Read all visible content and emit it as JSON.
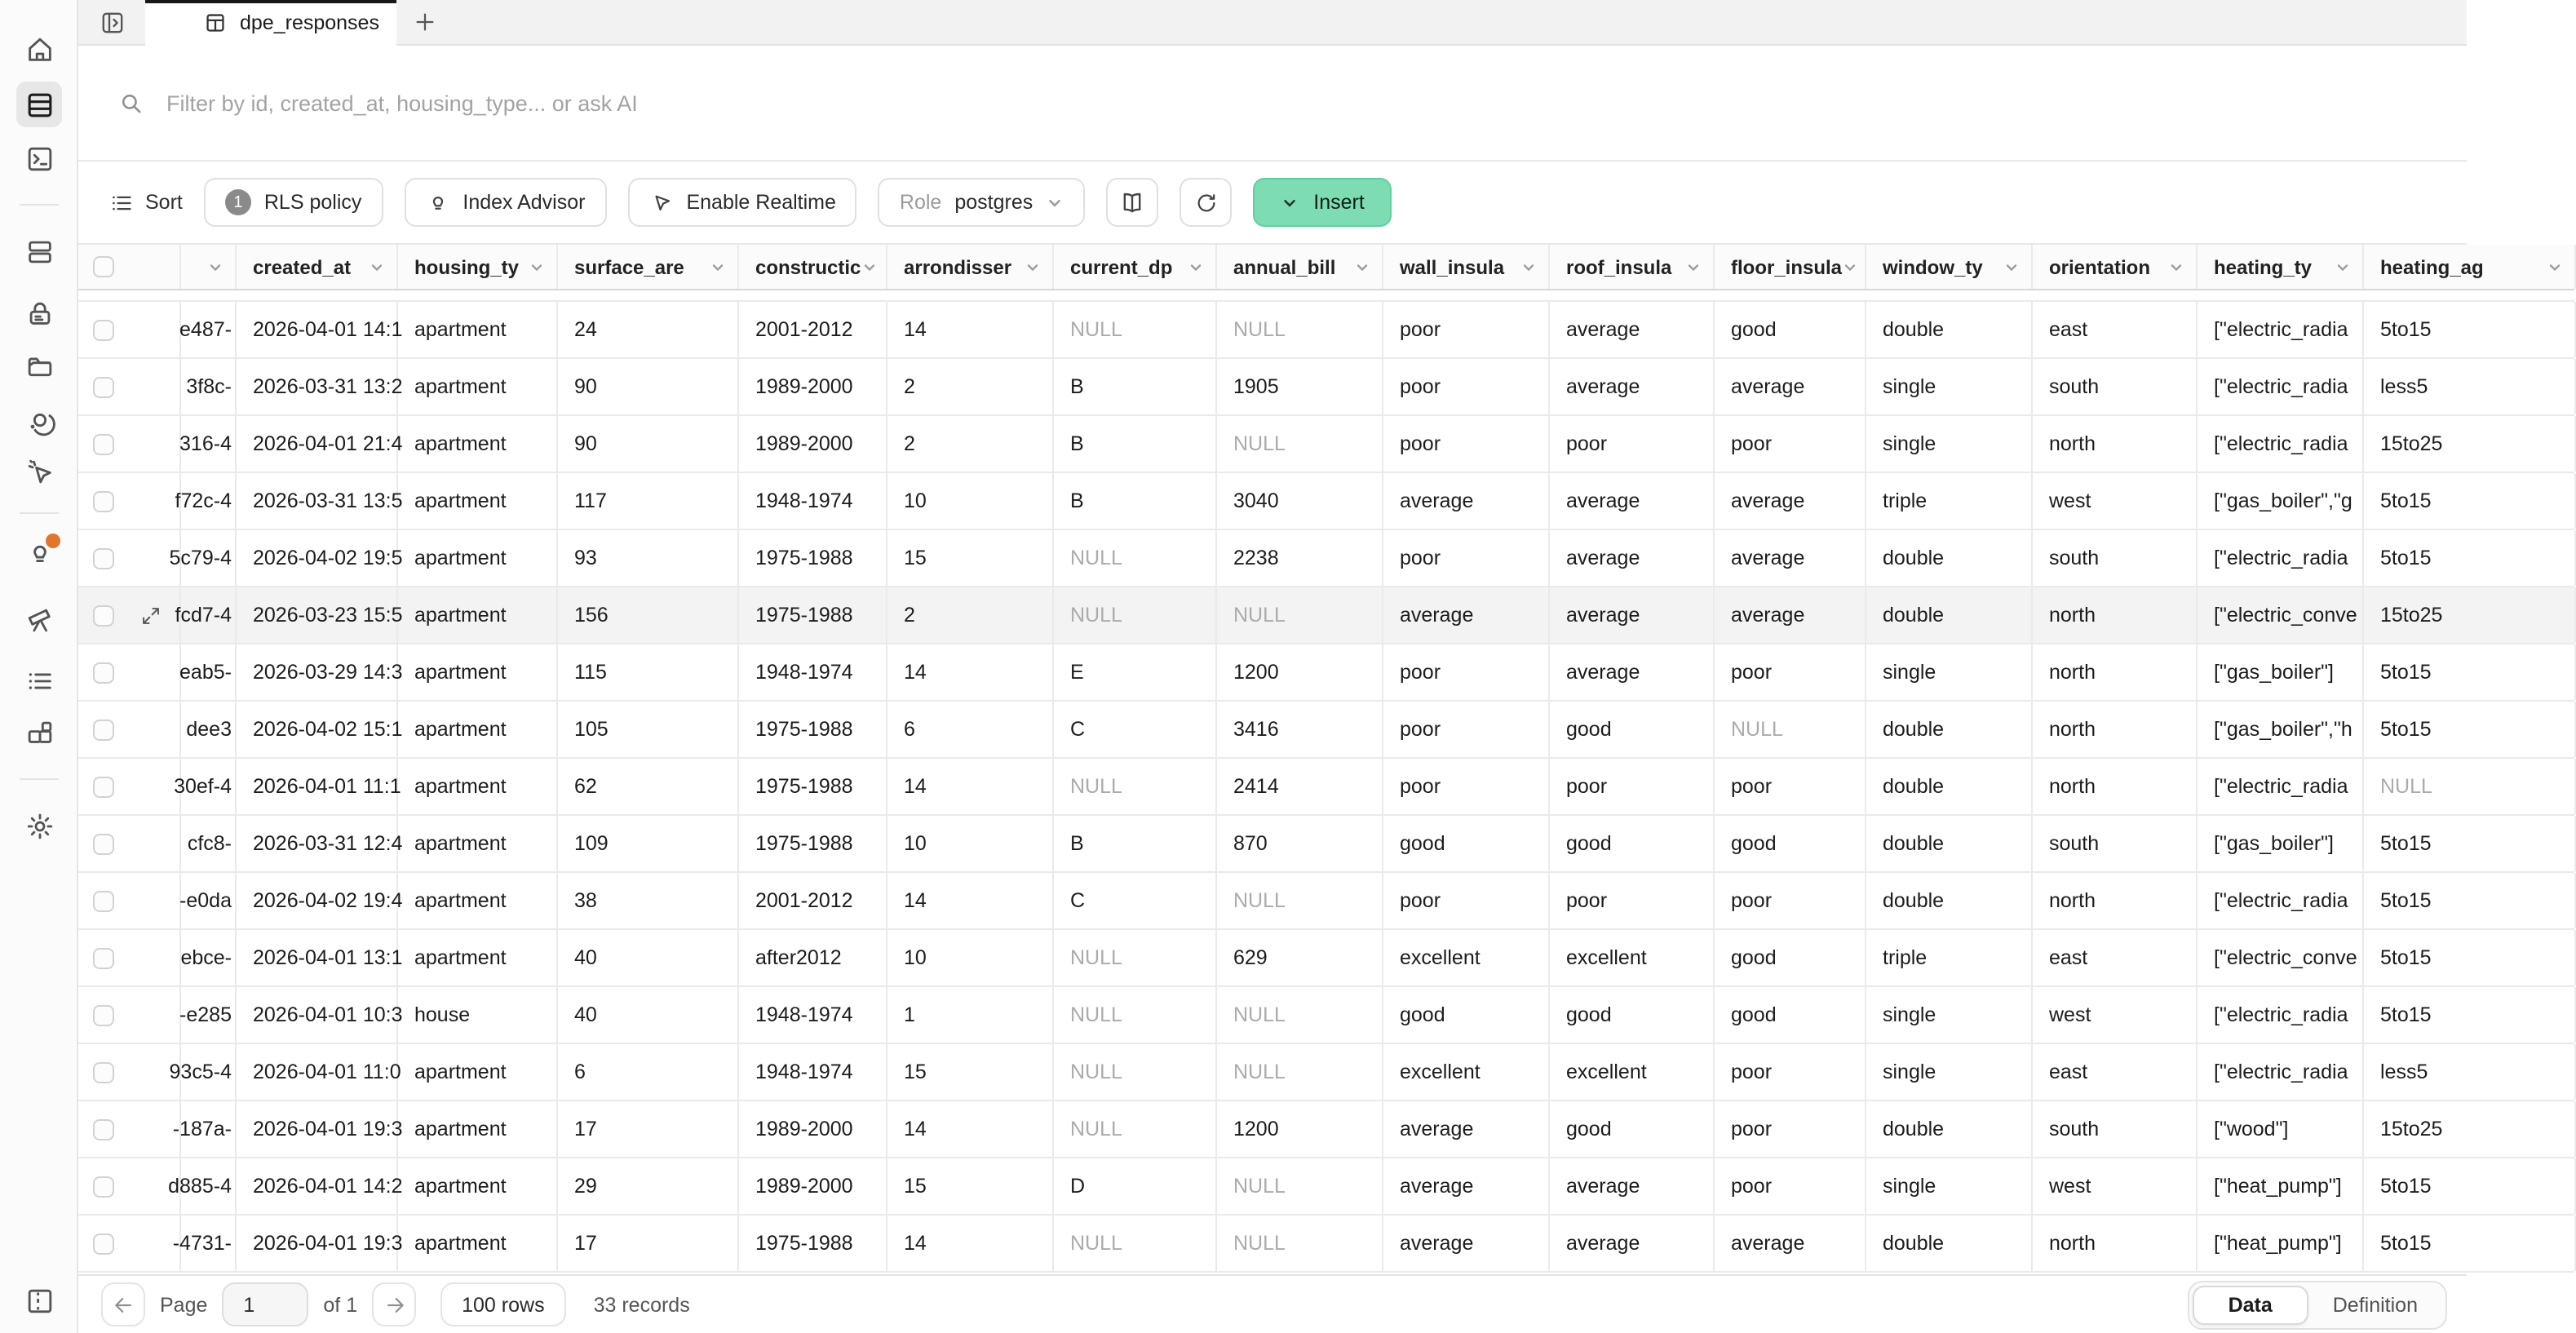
{
  "tab_bar": {
    "active_tab": "dpe_responses"
  },
  "filter_bar": {
    "placeholder": "Filter by id, created_at, housing_type... or ask AI"
  },
  "toolbar": {
    "sort": "Sort",
    "rls_policy": "RLS policy",
    "rls_count": "1",
    "index_advisor": "Index Advisor",
    "enable_realtime": "Enable Realtime",
    "role_label": "Role",
    "role_value": "postgres",
    "insert": "Insert"
  },
  "sidebar": {
    "active": "table-editor",
    "items": [
      "home",
      "table-editor",
      "sql-editor",
      "database",
      "authentication",
      "storage",
      "edge-functions",
      "realtime",
      "advisors",
      "reports",
      "logs",
      "api-docs",
      "settings",
      "toggle-panel"
    ]
  },
  "colors": {
    "accent_green": "#7edcb2",
    "notification_orange": "#e0762e"
  },
  "table": {
    "hovered_row_index": 5,
    "null_text": "NULL",
    "columns": [
      {
        "key": "id",
        "label": "",
        "width": 34,
        "align": "right"
      },
      {
        "key": "created_at",
        "label": "created_at",
        "width": 99
      },
      {
        "key": "housing_ty",
        "label": "housing_ty",
        "width": 98
      },
      {
        "key": "surface_are",
        "label": "surface_are",
        "width": 111
      },
      {
        "key": "constructic",
        "label": "constructic",
        "width": 91
      },
      {
        "key": "arrondisser",
        "label": "arrondisser",
        "width": 102
      },
      {
        "key": "current_dp",
        "label": "current_dp",
        "width": 100
      },
      {
        "key": "annual_bill",
        "label": "annual_bill",
        "width": 102
      },
      {
        "key": "wall_insula",
        "label": "wall_insula",
        "width": 102
      },
      {
        "key": "roof_insula",
        "label": "roof_insula",
        "width": 101
      },
      {
        "key": "floor_insula",
        "label": "floor_insula",
        "width": 93
      },
      {
        "key": "window_ty",
        "label": "window_ty",
        "width": 102
      },
      {
        "key": "orientation",
        "label": "orientation",
        "width": 101
      },
      {
        "key": "heating_ty",
        "label": "heating_ty",
        "width": 102
      },
      {
        "key": "heating_ag",
        "label": "heating_ag",
        "width": 130
      }
    ],
    "rows": [
      [
        "e487-",
        "2026-04-01 14:1",
        "apartment",
        "24",
        "2001-2012",
        "14",
        "NULL",
        "NULL",
        "poor",
        "average",
        "good",
        "double",
        "east",
        "[\"electric_radia",
        "5to15"
      ],
      [
        "3f8c-",
        "2026-03-31 13:2",
        "apartment",
        "90",
        "1989-2000",
        "2",
        "B",
        "1905",
        "poor",
        "average",
        "average",
        "single",
        "south",
        "[\"electric_radia",
        "less5"
      ],
      [
        "316-4",
        "2026-04-01 21:4",
        "apartment",
        "90",
        "1989-2000",
        "2",
        "B",
        "NULL",
        "poor",
        "poor",
        "poor",
        "single",
        "north",
        "[\"electric_radia",
        "15to25"
      ],
      [
        "f72c-4",
        "2026-03-31 13:5",
        "apartment",
        "117",
        "1948-1974",
        "10",
        "B",
        "3040",
        "average",
        "average",
        "average",
        "triple",
        "west",
        "[\"gas_boiler\",\"g",
        "5to15"
      ],
      [
        "5c79-4",
        "2026-04-02 19:5",
        "apartment",
        "93",
        "1975-1988",
        "15",
        "NULL",
        "2238",
        "poor",
        "average",
        "average",
        "double",
        "south",
        "[\"electric_radia",
        "5to15"
      ],
      [
        "fcd7-4",
        "2026-03-23 15:5",
        "apartment",
        "156",
        "1975-1988",
        "2",
        "NULL",
        "NULL",
        "average",
        "average",
        "average",
        "double",
        "north",
        "[\"electric_conve",
        "15to25"
      ],
      [
        "eab5-",
        "2026-03-29 14:3",
        "apartment",
        "115",
        "1948-1974",
        "14",
        "E",
        "1200",
        "poor",
        "average",
        "poor",
        "single",
        "north",
        "[\"gas_boiler\"]",
        "5to15"
      ],
      [
        "dee3",
        "2026-04-02 15:1",
        "apartment",
        "105",
        "1975-1988",
        "6",
        "C",
        "3416",
        "poor",
        "good",
        "NULL",
        "double",
        "north",
        "[\"gas_boiler\",\"h",
        "5to15"
      ],
      [
        "30ef-4",
        "2026-04-01 11:1",
        "apartment",
        "62",
        "1975-1988",
        "14",
        "NULL",
        "2414",
        "poor",
        "poor",
        "poor",
        "double",
        "north",
        "[\"electric_radia",
        "NULL"
      ],
      [
        "cfc8-",
        "2026-03-31 12:4",
        "apartment",
        "109",
        "1975-1988",
        "10",
        "B",
        "870",
        "good",
        "good",
        "good",
        "double",
        "south",
        "[\"gas_boiler\"]",
        "5to15"
      ],
      [
        "-e0da",
        "2026-04-02 19:4",
        "apartment",
        "38",
        "2001-2012",
        "14",
        "C",
        "NULL",
        "poor",
        "poor",
        "poor",
        "double",
        "north",
        "[\"electric_radia",
        "5to15"
      ],
      [
        "ebce-",
        "2026-04-01 13:1",
        "apartment",
        "40",
        "after2012",
        "10",
        "NULL",
        "629",
        "excellent",
        "excellent",
        "good",
        "triple",
        "east",
        "[\"electric_conve",
        "5to15"
      ],
      [
        "-e285",
        "2026-04-01 10:3",
        "house",
        "40",
        "1948-1974",
        "1",
        "NULL",
        "NULL",
        "good",
        "good",
        "good",
        "single",
        "west",
        "[\"electric_radia",
        "5to15"
      ],
      [
        "93c5-4",
        "2026-04-01 11:0",
        "apartment",
        "6",
        "1948-1974",
        "15",
        "NULL",
        "NULL",
        "excellent",
        "excellent",
        "poor",
        "single",
        "east",
        "[\"electric_radia",
        "less5"
      ],
      [
        "-187a-",
        "2026-04-01 19:3",
        "apartment",
        "17",
        "1989-2000",
        "14",
        "NULL",
        "1200",
        "average",
        "good",
        "poor",
        "double",
        "south",
        "[\"wood\"]",
        "15to25"
      ],
      [
        "d885-4",
        "2026-04-01 14:2",
        "apartment",
        "29",
        "1989-2000",
        "15",
        "D",
        "NULL",
        "average",
        "average",
        "poor",
        "single",
        "west",
        "[\"heat_pump\"]",
        "5to15"
      ],
      [
        "-4731-",
        "2026-04-01 19:3",
        "apartment",
        "17",
        "1975-1988",
        "14",
        "NULL",
        "NULL",
        "average",
        "average",
        "average",
        "double",
        "north",
        "[\"heat_pump\"]",
        "5to15"
      ]
    ]
  },
  "footer": {
    "page_label": "Page",
    "page_value": "1",
    "page_of": "of 1",
    "rows_per_page": "100 rows",
    "records": "33 records",
    "view_data": "Data",
    "view_definition": "Definition"
  }
}
